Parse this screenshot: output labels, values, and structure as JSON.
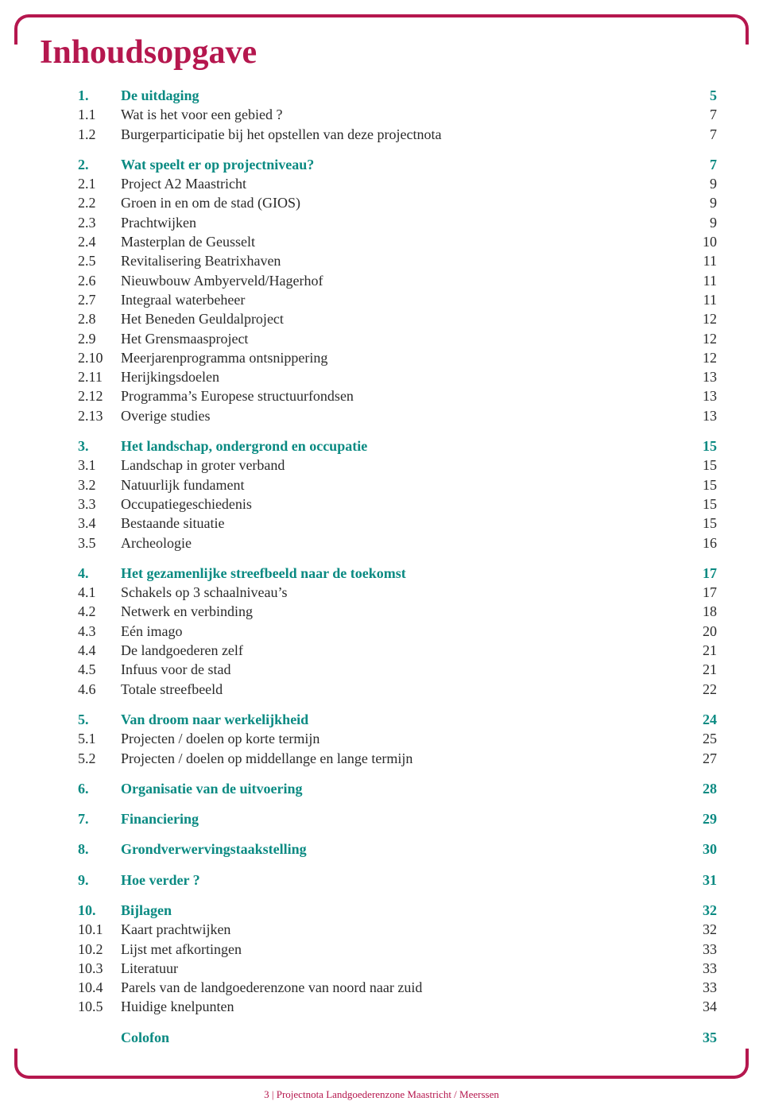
{
  "colors": {
    "accent": "#b5174e",
    "heading": "#0a8a82",
    "text": "#2a2a2a",
    "background": "#ffffff"
  },
  "title": "Inhoudsopgave",
  "footer": "3 | Projectnota Landgoederenzone Maastricht / Meerssen",
  "sections": [
    {
      "head": {
        "num": "1.",
        "label": "De uitdaging",
        "page": "5"
      },
      "items": [
        {
          "num": "1.1",
          "label": "Wat is het voor een gebied ?",
          "page": "7"
        },
        {
          "num": "1.2",
          "label": "Burgerparticipatie bij het opstellen van deze projectnota",
          "page": "7"
        }
      ]
    },
    {
      "head": {
        "num": "2.",
        "label": "Wat speelt er op projectniveau?",
        "page": "7"
      },
      "items": [
        {
          "num": "2.1",
          "label": "Project A2 Maastricht",
          "page": "9"
        },
        {
          "num": "2.2",
          "label": "Groen in en om de stad (GIOS)",
          "page": "9"
        },
        {
          "num": "2.3",
          "label": "Prachtwijken",
          "page": "9"
        },
        {
          "num": "2.4",
          "label": "Masterplan de Geusselt",
          "page": "10"
        },
        {
          "num": "2.5",
          "label": "Revitalisering Beatrixhaven",
          "page": "11"
        },
        {
          "num": "2.6",
          "label": "Nieuwbouw Ambyerveld/Hagerhof",
          "page": "11"
        },
        {
          "num": "2.7",
          "label": "Integraal waterbeheer",
          "page": "11"
        },
        {
          "num": "2.8",
          "label": "Het Beneden Geuldalproject",
          "page": "12"
        },
        {
          "num": "2.9",
          "label": "Het Grensmaasproject",
          "page": "12"
        },
        {
          "num": "2.10",
          "label": "Meerjarenprogramma ontsnippering",
          "page": "12"
        },
        {
          "num": "2.11",
          "label": "Herijkingsdoelen",
          "page": "13"
        },
        {
          "num": "2.12",
          "label": "Programma’s Europese structuurfondsen",
          "page": "13"
        },
        {
          "num": "2.13",
          "label": "Overige studies",
          "page": "13"
        }
      ]
    },
    {
      "head": {
        "num": "3.",
        "label": "Het landschap, ondergrond en occupatie",
        "page": "15"
      },
      "items": [
        {
          "num": "3.1",
          "label": "Landschap in groter verband",
          "page": "15"
        },
        {
          "num": "3.2",
          "label": "Natuurlijk fundament",
          "page": "15"
        },
        {
          "num": "3.3",
          "label": "Occupatiegeschiedenis",
          "page": "15"
        },
        {
          "num": "3.4",
          "label": "Bestaande situatie",
          "page": "15"
        },
        {
          "num": "3.5",
          "label": "Archeologie",
          "page": "16"
        }
      ]
    },
    {
      "head": {
        "num": "4.",
        "label": "Het gezamenlijke streefbeeld naar de toekomst",
        "page": "17"
      },
      "items": [
        {
          "num": "4.1",
          "label": "Schakels op 3 schaalniveau’s",
          "page": "17"
        },
        {
          "num": "4.2",
          "label": "Netwerk en verbinding",
          "page": "18"
        },
        {
          "num": "4.3",
          "label": "Eén imago",
          "page": "20"
        },
        {
          "num": "4.4",
          "label": "De landgoederen zelf",
          "page": "21"
        },
        {
          "num": "4.5",
          "label": "Infuus voor de stad",
          "page": "21"
        },
        {
          "num": "4.6",
          "label": "Totale streefbeeld",
          "page": "22"
        }
      ]
    },
    {
      "head": {
        "num": "5.",
        "label": "Van droom naar werkelijkheid",
        "page": "24"
      },
      "items": [
        {
          "num": "5.1",
          "label": "Projecten / doelen op korte termijn",
          "page": "25"
        },
        {
          "num": "5.2",
          "label": "Projecten / doelen op middellange en lange termijn",
          "page": "27"
        }
      ]
    },
    {
      "head": {
        "num": "6.",
        "label": "Organisatie van de uitvoering",
        "page": "28"
      },
      "items": []
    },
    {
      "head": {
        "num": "7.",
        "label": "Financiering",
        "page": "29"
      },
      "items": []
    },
    {
      "head": {
        "num": "8.",
        "label": "Grondverwervingstaakstelling",
        "page": "30"
      },
      "items": []
    },
    {
      "head": {
        "num": "9.",
        "label": "Hoe verder ?",
        "page": "31"
      },
      "items": []
    },
    {
      "head": {
        "num": "10.",
        "label": "Bijlagen",
        "page": "32"
      },
      "items": [
        {
          "num": "10.1",
          "label": "Kaart prachtwijken",
          "page": "32"
        },
        {
          "num": "10.2",
          "label": "Lijst met afkortingen",
          "page": "33"
        },
        {
          "num": "10.3",
          "label": "Literatuur",
          "page": "33"
        },
        {
          "num": "10.4",
          "label": "Parels van de landgoederenzone van noord naar zuid",
          "page": "33"
        },
        {
          "num": "10.5",
          "label": "Huidige knelpunten",
          "page": "34"
        }
      ]
    },
    {
      "head": {
        "num": "",
        "label": "Colofon",
        "page": "35"
      },
      "items": []
    }
  ]
}
